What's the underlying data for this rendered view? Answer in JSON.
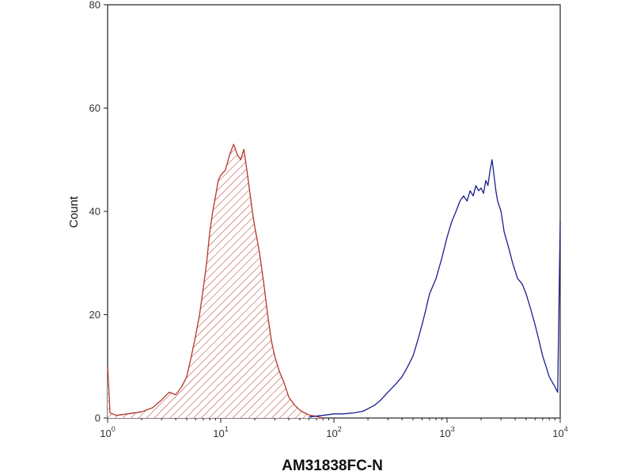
{
  "chart_data": {
    "type": "area",
    "title": "",
    "xlabel": "AM31838FC-N",
    "ylabel": "Count",
    "x_scale": "log",
    "xlim": [
      1,
      10000
    ],
    "ylim": [
      0,
      80
    ],
    "grid": false,
    "x_ticks": [
      {
        "value": 1,
        "base": "10",
        "exp": "0"
      },
      {
        "value": 10,
        "base": "10",
        "exp": "1"
      },
      {
        "value": 100,
        "base": "10",
        "exp": "2"
      },
      {
        "value": 1000,
        "base": "10",
        "exp": "3"
      },
      {
        "value": 10000,
        "base": "10",
        "exp": "4"
      }
    ],
    "y_ticks": [
      0,
      20,
      40,
      60,
      80
    ],
    "series": [
      {
        "color": "#b5352a",
        "fill": "hatched",
        "points": [
          [
            1,
            10
          ],
          [
            1.05,
            1
          ],
          [
            1.2,
            0.5
          ],
          [
            1.5,
            0.8
          ],
          [
            2,
            1.2
          ],
          [
            2.5,
            2
          ],
          [
            3,
            3.5
          ],
          [
            3.5,
            5
          ],
          [
            4,
            4.5
          ],
          [
            4.5,
            6
          ],
          [
            5,
            8
          ],
          [
            5.5,
            12
          ],
          [
            6,
            16
          ],
          [
            6.5,
            20
          ],
          [
            7,
            25
          ],
          [
            7.5,
            30
          ],
          [
            8,
            36
          ],
          [
            8.5,
            40
          ],
          [
            9,
            43
          ],
          [
            9.5,
            46
          ],
          [
            10,
            47
          ],
          [
            11,
            48
          ],
          [
            12,
            51
          ],
          [
            13,
            53
          ],
          [
            14,
            51
          ],
          [
            15,
            50
          ],
          [
            16,
            52
          ],
          [
            17,
            48
          ],
          [
            18,
            44
          ],
          [
            19,
            40
          ],
          [
            20,
            37
          ],
          [
            22,
            32
          ],
          [
            24,
            26
          ],
          [
            26,
            20
          ],
          [
            28,
            15
          ],
          [
            30,
            12
          ],
          [
            33,
            9
          ],
          [
            36,
            7
          ],
          [
            40,
            4
          ],
          [
            45,
            2.5
          ],
          [
            50,
            1.5
          ],
          [
            55,
            1
          ],
          [
            60,
            0.6
          ],
          [
            70,
            0.3
          ],
          [
            80,
            0
          ]
        ]
      },
      {
        "color": "#1a1f8c",
        "fill": "none",
        "points": [
          [
            60,
            0.2
          ],
          [
            80,
            0.5
          ],
          [
            100,
            0.8
          ],
          [
            120,
            0.8
          ],
          [
            150,
            1
          ],
          [
            180,
            1.3
          ],
          [
            200,
            1.8
          ],
          [
            230,
            2.5
          ],
          [
            260,
            3.5
          ],
          [
            300,
            5
          ],
          [
            350,
            6.5
          ],
          [
            400,
            8
          ],
          [
            450,
            10
          ],
          [
            500,
            12
          ],
          [
            550,
            15
          ],
          [
            600,
            18
          ],
          [
            650,
            21
          ],
          [
            700,
            24
          ],
          [
            800,
            27
          ],
          [
            900,
            31
          ],
          [
            1000,
            35
          ],
          [
            1100,
            38
          ],
          [
            1200,
            40
          ],
          [
            1300,
            42
          ],
          [
            1400,
            43
          ],
          [
            1500,
            42
          ],
          [
            1600,
            44
          ],
          [
            1700,
            43
          ],
          [
            1800,
            45
          ],
          [
            1900,
            44
          ],
          [
            2000,
            44.5
          ],
          [
            2100,
            43.5
          ],
          [
            2200,
            46
          ],
          [
            2300,
            45
          ],
          [
            2400,
            48
          ],
          [
            2500,
            50
          ],
          [
            2600,
            47
          ],
          [
            2700,
            44
          ],
          [
            2800,
            42
          ],
          [
            3000,
            40
          ],
          [
            3200,
            36
          ],
          [
            3500,
            33
          ],
          [
            3800,
            30
          ],
          [
            4200,
            27
          ],
          [
            4600,
            26
          ],
          [
            5000,
            24
          ],
          [
            5500,
            21
          ],
          [
            6000,
            18
          ],
          [
            6500,
            15
          ],
          [
            7000,
            12
          ],
          [
            7500,
            10
          ],
          [
            8000,
            8
          ],
          [
            9000,
            6
          ],
          [
            9500,
            5
          ],
          [
            10000,
            38
          ]
        ]
      }
    ]
  }
}
